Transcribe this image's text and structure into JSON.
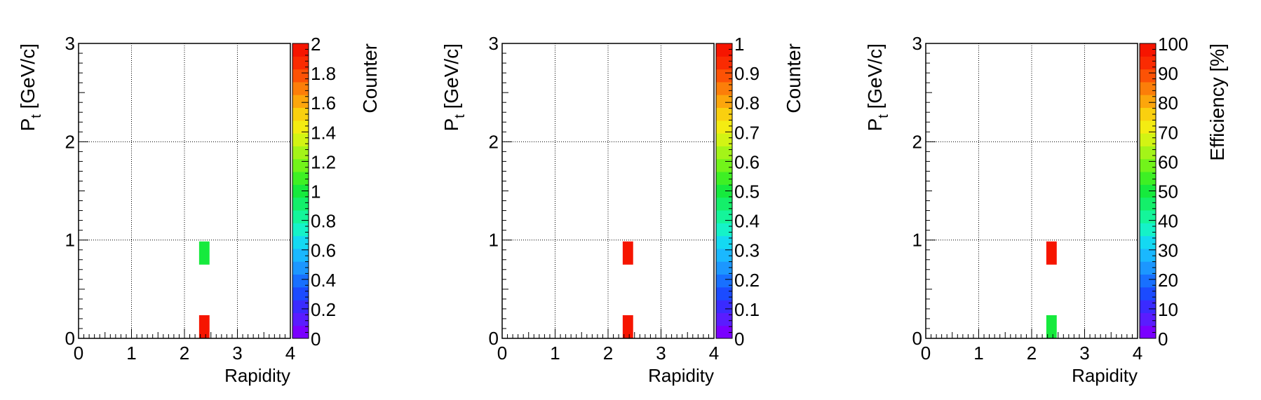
{
  "palette": [
    "#7a00ff",
    "#5a1cff",
    "#3a2bff",
    "#1b4bff",
    "#1870ff",
    "#1c97ff",
    "#1ab8ff",
    "#14d9f2",
    "#15f2c8",
    "#14f59a",
    "#14ef6a",
    "#16ea3d",
    "#3ef024",
    "#72f41a",
    "#a4f418",
    "#d2f414",
    "#f4ec12",
    "#fad00f",
    "#fca60c",
    "#fc7e09",
    "#fc5205",
    "#fa2b02",
    "#f61500"
  ],
  "chart_data": [
    {
      "type": "heatmap",
      "xlabel": "Rapidity",
      "ylabel_main": "P",
      "ylabel_sub": "t",
      "ylabel_unit": " [GeV/c]",
      "zlabel": "Counter",
      "xlim": [
        0,
        4
      ],
      "ylim": [
        0,
        3
      ],
      "zlim": [
        0,
        2
      ],
      "x_ticks": [
        "0",
        "1",
        "2",
        "3",
        "4"
      ],
      "y_ticks": [
        "0",
        "1",
        "2",
        "3"
      ],
      "z_ticks": [
        "0",
        "0.2",
        "0.4",
        "0.6",
        "0.8",
        "1",
        "1.2",
        "1.4",
        "1.6",
        "1.8",
        "2"
      ],
      "grid": true,
      "cells": [
        {
          "x0": 2.25,
          "x1": 2.5,
          "y0": 0.0,
          "y1": 0.25,
          "value": 2
        },
        {
          "x0": 2.25,
          "x1": 2.5,
          "y0": 0.75,
          "y1": 1.0,
          "value": 1
        }
      ]
    },
    {
      "type": "heatmap",
      "xlabel": "Rapidity",
      "ylabel_main": "P",
      "ylabel_sub": "t",
      "ylabel_unit": " [GeV/c]",
      "zlabel": "Counter",
      "xlim": [
        0,
        4
      ],
      "ylim": [
        0,
        3
      ],
      "zlim": [
        0,
        1
      ],
      "x_ticks": [
        "0",
        "1",
        "2",
        "3",
        "4"
      ],
      "y_ticks": [
        "0",
        "1",
        "2",
        "3"
      ],
      "z_ticks": [
        "0",
        "0.1",
        "0.2",
        "0.3",
        "0.4",
        "0.5",
        "0.6",
        "0.7",
        "0.8",
        "0.9",
        "1"
      ],
      "grid": true,
      "cells": [
        {
          "x0": 2.25,
          "x1": 2.5,
          "y0": 0.0,
          "y1": 0.25,
          "value": 1
        },
        {
          "x0": 2.25,
          "x1": 2.5,
          "y0": 0.75,
          "y1": 1.0,
          "value": 1
        }
      ]
    },
    {
      "type": "heatmap",
      "xlabel": "Rapidity",
      "ylabel_main": "P",
      "ylabel_sub": "t",
      "ylabel_unit": " [GeV/c]",
      "zlabel": "Efficiency [%]",
      "xlim": [
        0,
        4
      ],
      "ylim": [
        0,
        3
      ],
      "zlim": [
        0,
        100
      ],
      "x_ticks": [
        "0",
        "1",
        "2",
        "3",
        "4"
      ],
      "y_ticks": [
        "0",
        "1",
        "2",
        "3"
      ],
      "z_ticks": [
        "0",
        "10",
        "20",
        "30",
        "40",
        "50",
        "60",
        "70",
        "80",
        "90",
        "100"
      ],
      "grid": true,
      "cells": [
        {
          "x0": 2.25,
          "x1": 2.5,
          "y0": 0.0,
          "y1": 0.25,
          "value": 50
        },
        {
          "x0": 2.25,
          "x1": 2.5,
          "y0": 0.75,
          "y1": 1.0,
          "value": 100
        }
      ]
    }
  ]
}
